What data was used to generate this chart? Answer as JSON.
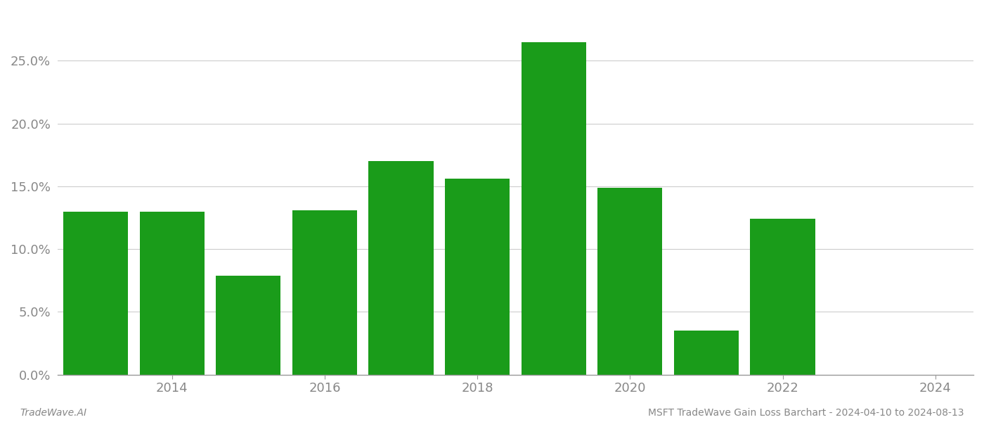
{
  "years": [
    2013,
    2014,
    2015,
    2016,
    2017,
    2018,
    2019,
    2020,
    2021,
    2022,
    2023
  ],
  "values": [
    0.13,
    0.13,
    0.079,
    0.131,
    0.17,
    0.156,
    0.265,
    0.149,
    0.035,
    0.124,
    0.0
  ],
  "bar_color": "#1a9c1a",
  "ylim": [
    0,
    0.29
  ],
  "yticks": [
    0.0,
    0.05,
    0.1,
    0.15,
    0.2,
    0.25
  ],
  "xtick_positions": [
    2014,
    2016,
    2018,
    2020,
    2022,
    2024
  ],
  "footer_left": "TradeWave.AI",
  "footer_right": "MSFT TradeWave Gain Loss Barchart - 2024-04-10 to 2024-08-13",
  "background_color": "#ffffff",
  "grid_color": "#cccccc",
  "tick_fontsize": 13,
  "footer_fontsize": 10,
  "bar_width": 0.85
}
